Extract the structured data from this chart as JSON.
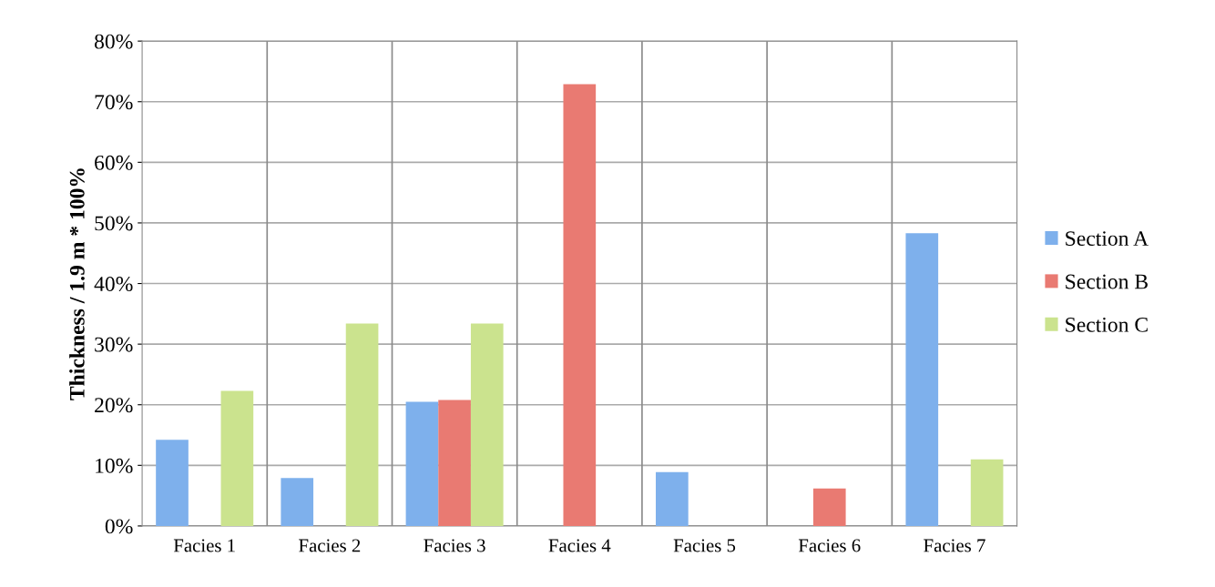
{
  "chart_data": {
    "type": "bar",
    "ylabel": "Thickness / 1.9 m * 100%",
    "categories": [
      "Facies 1",
      "Facies 2",
      "Facies 3",
      "Facies 4",
      "Facies 5",
      "Facies 6",
      "Facies 7"
    ],
    "series": [
      {
        "name": "Section A",
        "color": "#7eb0ec",
        "values": [
          14.2,
          7.9,
          20.5,
          null,
          8.9,
          null,
          48.3
        ]
      },
      {
        "name": "Section B",
        "color": "#e97a72",
        "values": [
          null,
          null,
          20.8,
          72.9,
          null,
          6.2,
          null
        ]
      },
      {
        "name": "Section C",
        "color": "#cbe38e",
        "values": [
          22.3,
          33.4,
          33.4,
          null,
          null,
          null,
          11.0
        ]
      }
    ],
    "ylim": [
      0,
      80
    ],
    "yticks": [
      {
        "value": 0,
        "label": "0%"
      },
      {
        "value": 10,
        "label": "10%"
      },
      {
        "value": 20,
        "label": "20%"
      },
      {
        "value": 30,
        "label": "30%"
      },
      {
        "value": 40,
        "label": "40%"
      },
      {
        "value": 50,
        "label": "50%"
      },
      {
        "value": 60,
        "label": "60%"
      },
      {
        "value": 70,
        "label": "70%"
      },
      {
        "value": 80,
        "label": "80%"
      }
    ],
    "grid": true,
    "legend": "right"
  }
}
